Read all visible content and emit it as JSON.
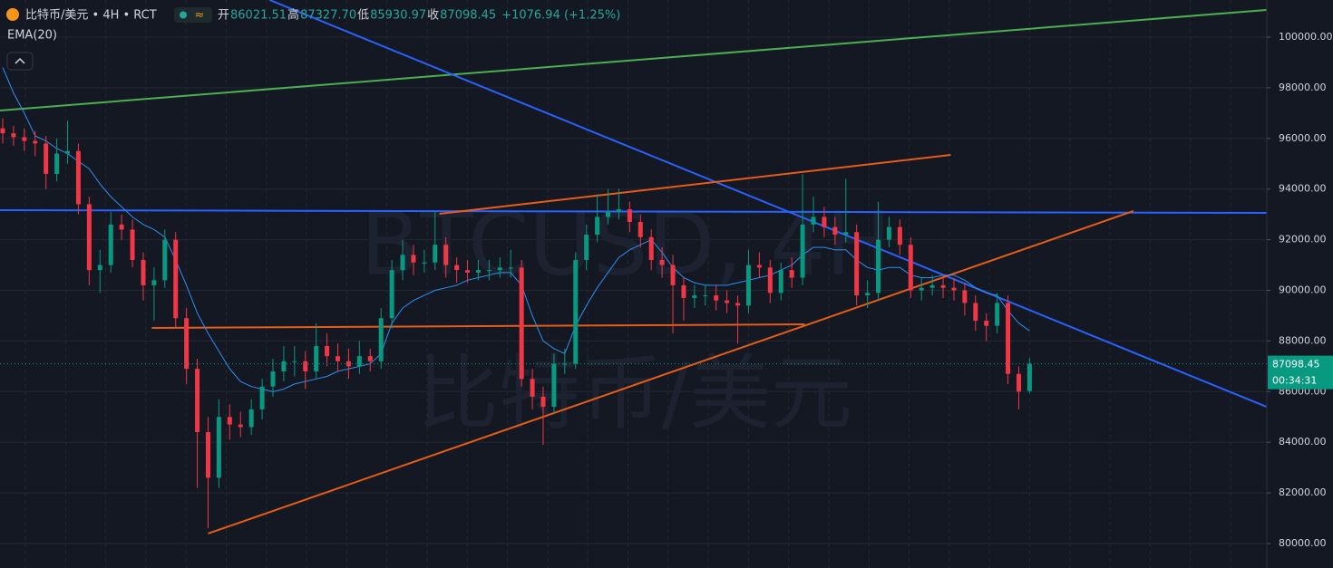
{
  "chart_data": {
    "type": "candlestick",
    "header": {
      "symbol": "比特币/美元 • 4H • RCT",
      "open_label": "开",
      "open": "86021.51",
      "high_label": "高",
      "high": "87327.70",
      "low_label": "低",
      "low": "85930.97",
      "close_label": "收",
      "close": "87098.45",
      "change": "+1076.94 (+1.25%)"
    },
    "watermark": [
      "BTCUSD, 4H",
      "比特币/美元"
    ],
    "countdown": "00:34:31",
    "up_color": "#089981",
    "down_color": "#f23645",
    "ylim": [
      79034,
      101467
    ],
    "yticks": [
      {
        "value": 80000,
        "label": "80000.00"
      },
      {
        "value": 82000,
        "label": "82000.00"
      },
      {
        "value": 84000,
        "label": "84000.00"
      },
      {
        "value": 86000,
        "label": "86000.00"
      },
      {
        "value": 88000,
        "label": "88000.00"
      },
      {
        "value": 90000,
        "label": "90000.00"
      },
      {
        "value": 92000,
        "label": "92000.00"
      },
      {
        "value": 94000,
        "label": "94000.00"
      },
      {
        "value": 96000,
        "label": "96000.00"
      },
      {
        "value": 98000,
        "label": "98000.00"
      },
      {
        "value": 100000,
        "label": "100000.00"
      }
    ],
    "grid": true,
    "open": [
      96400,
      96200,
      96050,
      95900,
      95800,
      94600,
      95400,
      95500,
      93400,
      90800,
      91000,
      92600,
      92400,
      91200,
      90200,
      90400,
      92000,
      88900,
      86900,
      84400,
      82600,
      85000,
      84700,
      84600,
      85300,
      86200,
      86800,
      87200,
      87200,
      86800,
      87800,
      87400,
      87200,
      87000,
      87400,
      87200,
      88900,
      90800,
      91400,
      91100,
      91100,
      91800,
      91000,
      90800,
      90700,
      90800,
      90800,
      90900,
      90900,
      86500,
      85800,
      85400,
      87100,
      87100,
      91200,
      92200,
      92900,
      93100,
      93200,
      92700,
      92100,
      91200,
      91000,
      90200,
      89700,
      89800,
      89800,
      89600,
      89500,
      89400,
      91000,
      90900,
      89900,
      90800,
      90500,
      92600,
      92900,
      92500,
      92200,
      92300,
      89800,
      89900,
      92000,
      92500,
      91800,
      90000,
      90100,
      90200,
      90100,
      90000,
      89500,
      88800,
      88600,
      89500,
      86700,
      86021.51
    ],
    "high": [
      96800,
      96500,
      96400,
      96300,
      96100,
      96000,
      96700,
      95800,
      93700,
      91600,
      93100,
      93000,
      92800,
      91500,
      90900,
      92400,
      92300,
      89300,
      87300,
      85000,
      85700,
      85500,
      85200,
      85700,
      86500,
      87300,
      87800,
      87800,
      87600,
      88700,
      88300,
      87900,
      87700,
      88000,
      87700,
      89300,
      91200,
      92000,
      91800,
      91600,
      93100,
      92100,
      91300,
      91200,
      91200,
      91200,
      91300,
      91600,
      91200,
      86900,
      86200,
      87500,
      87700,
      91500,
      92600,
      93800,
      94000,
      94000,
      93500,
      93000,
      92400,
      91700,
      91400,
      90500,
      90200,
      90200,
      90200,
      90000,
      89800,
      91600,
      91500,
      91200,
      91100,
      91300,
      94600,
      93700,
      93300,
      92900,
      94400,
      92600,
      90400,
      93500,
      92900,
      92800,
      92100,
      90500,
      90600,
      90600,
      90500,
      90300,
      89800,
      89100,
      89900,
      89800,
      87000,
      87327.7
    ],
    "low": [
      95800,
      95700,
      95500,
      95300,
      94000,
      94300,
      95000,
      93000,
      90200,
      89900,
      90700,
      92000,
      90900,
      89600,
      88800,
      90100,
      88500,
      86300,
      82200,
      80600,
      82200,
      84100,
      84200,
      84300,
      84900,
      85800,
      86400,
      86600,
      86100,
      86500,
      87000,
      86800,
      86500,
      86700,
      86800,
      86900,
      88500,
      90400,
      90600,
      90700,
      90800,
      90500,
      90300,
      90300,
      90400,
      90400,
      90500,
      90500,
      86200,
      85300,
      83900,
      85100,
      86700,
      86900,
      90800,
      91900,
      92600,
      92800,
      92300,
      91700,
      90800,
      90500,
      88300,
      88800,
      89300,
      89400,
      89200,
      89100,
      87900,
      89100,
      90500,
      89500,
      89600,
      90100,
      90200,
      92300,
      92100,
      91800,
      91900,
      89400,
      89300,
      89600,
      91700,
      91400,
      89700,
      89600,
      89800,
      89700,
      89600,
      89000,
      88400,
      88000,
      88300,
      86300,
      85300,
      85930.97
    ],
    "close": [
      96200,
      96050,
      95900,
      95800,
      94600,
      95400,
      95500,
      93400,
      90800,
      91000,
      92600,
      92400,
      91200,
      90200,
      90400,
      92000,
      88900,
      86900,
      84400,
      82600,
      85000,
      84700,
      84600,
      85300,
      86200,
      86800,
      87200,
      87200,
      86800,
      87800,
      87400,
      87200,
      87000,
      87400,
      87200,
      88900,
      90800,
      91400,
      91100,
      91100,
      91800,
      91000,
      90800,
      90700,
      90800,
      90800,
      90900,
      90900,
      86500,
      85800,
      85400,
      87100,
      87100,
      91200,
      92200,
      92900,
      93100,
      93200,
      92700,
      92100,
      91200,
      91000,
      90200,
      89700,
      89800,
      89800,
      89600,
      89500,
      89400,
      91000,
      90900,
      89900,
      90800,
      90500,
      92600,
      92900,
      92500,
      92200,
      92300,
      89800,
      89900,
      92000,
      92500,
      91800,
      90000,
      90100,
      90200,
      90100,
      90000,
      89500,
      88800,
      88600,
      89500,
      86700,
      86000,
      87098.45
    ],
    "ema": {
      "name": "EMA(20)",
      "color": "#2f8ff0",
      "values": [
        98800,
        97800,
        97000,
        96100,
        95900,
        95600,
        95400,
        95100,
        94800,
        94200,
        93700,
        93300,
        92900,
        92600,
        92400,
        92100,
        91200,
        90200,
        89100,
        88300,
        87600,
        86900,
        86400,
        86200,
        86100,
        86000,
        86100,
        86300,
        86400,
        86500,
        86600,
        86800,
        86900,
        87000,
        87100,
        87500,
        88700,
        89300,
        89600,
        89800,
        90000,
        90100,
        90200,
        90400,
        90500,
        90600,
        90700,
        90700,
        90200,
        89000,
        88000,
        87700,
        87500,
        88600,
        89400,
        90100,
        90700,
        91300,
        91600,
        91800,
        92000,
        91500,
        90900,
        90500,
        90300,
        90200,
        90200,
        90200,
        90300,
        90400,
        90500,
        90600,
        90800,
        91000,
        91400,
        91700,
        91700,
        91600,
        91600,
        91200,
        90900,
        90800,
        90900,
        90900,
        90600,
        90500,
        90500,
        90600,
        90600,
        90400,
        90100,
        89900,
        89800,
        89200,
        88700,
        88400
      ]
    },
    "trendlines": [
      {
        "color": "#4caf50",
        "points": [
          [
            -0.25,
            97102
          ],
          [
            116.9,
            101073
          ]
        ]
      },
      {
        "color": "#2962ff",
        "points": [
          [
            24.7,
            101467
          ],
          [
            116.9,
            85403
          ]
        ]
      },
      {
        "color": "#2962ff",
        "points": [
          [
            -0.25,
            93166
          ],
          [
            116.9,
            93059
          ]
        ]
      },
      {
        "color": "#e65c19",
        "points": [
          [
            40.4,
            93023
          ],
          [
            87.7,
            95349
          ]
        ]
      },
      {
        "color": "#e65c19",
        "points": [
          [
            13.8,
            88515
          ],
          [
            74.2,
            88658
          ]
        ]
      },
      {
        "color": "#e65c19",
        "points": [
          [
            19.0,
            80394
          ],
          [
            104.6,
            93131
          ]
        ]
      }
    ]
  }
}
